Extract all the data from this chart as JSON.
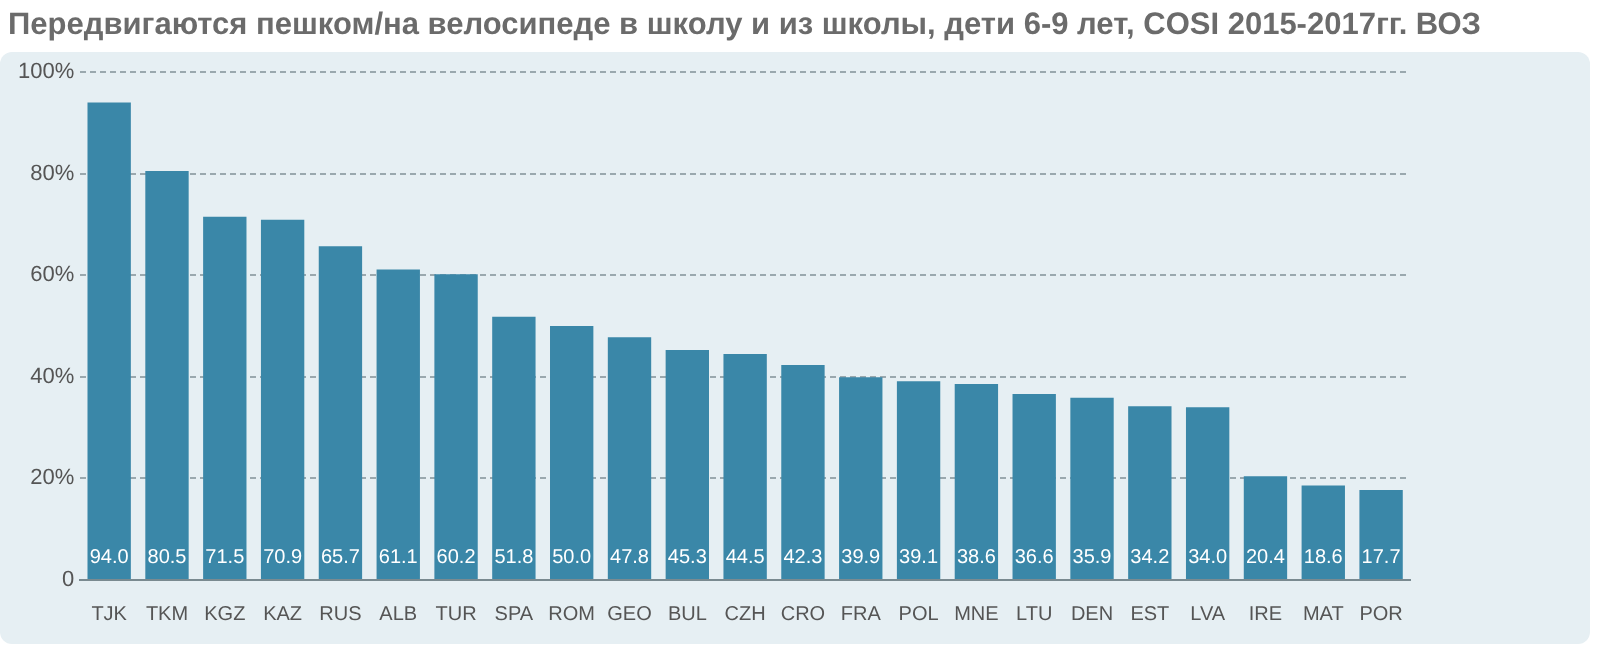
{
  "chart_data": {
    "type": "bar",
    "title": "Передвигаются пешком/на велосипеде в школу и из школы, дети 6-9 лет, COSI 2015-2017гг. ВОЗ",
    "categories": [
      "TJK",
      "TKM",
      "KGZ",
      "KAZ",
      "RUS",
      "ALB",
      "TUR",
      "SPA",
      "ROM",
      "GEO",
      "BUL",
      "CZH",
      "CRO",
      "FRA",
      "POL",
      "MNE",
      "LTU",
      "DEN",
      "EST",
      "LVA",
      "IRE",
      "MAT",
      "POR"
    ],
    "values": [
      94.0,
      80.5,
      71.5,
      70.9,
      65.7,
      61.1,
      60.2,
      51.8,
      50.0,
      47.8,
      45.3,
      44.5,
      42.3,
      39.9,
      39.1,
      38.6,
      36.6,
      35.9,
      34.2,
      34.0,
      20.4,
      18.6,
      17.7
    ],
    "color": "#3a87a8",
    "ylim": [
      0,
      100
    ],
    "yticks": [
      0,
      {
        "value": 20,
        "label": "20%"
      },
      {
        "value": 40,
        "label": "40%"
      },
      {
        "value": 60,
        "label": "60%"
      },
      {
        "value": 80,
        "label": "80%"
      },
      {
        "value": 100,
        "label": "100%"
      }
    ],
    "value_labels": [
      "94.0",
      "80.5",
      "71.5",
      "70.9",
      "65.7",
      "61.1",
      "60.2",
      "51.8",
      "50.0",
      "47.8",
      "45.3",
      "44.5",
      "42.3",
      "39.9",
      "39.1",
      "38.6",
      "36.6",
      "35.9",
      "34.2",
      "34.0",
      "20.4",
      "18.6",
      "17.7"
    ],
    "grid": "y",
    "legend": false
  }
}
